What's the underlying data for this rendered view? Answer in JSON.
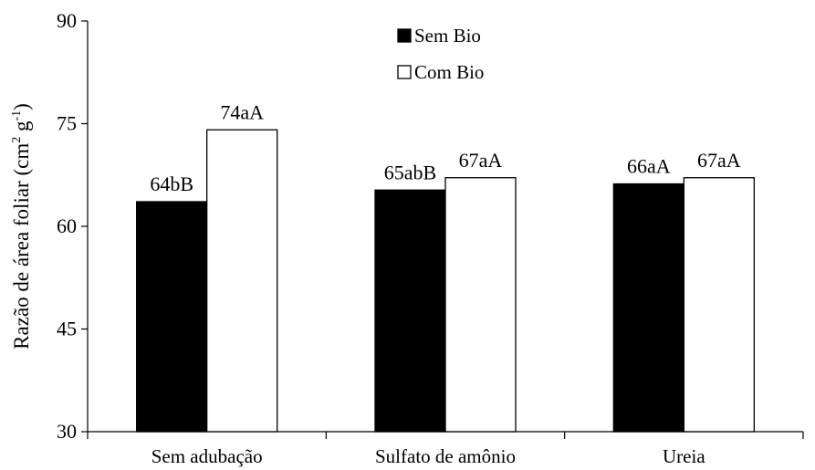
{
  "chart_data": {
    "type": "bar",
    "categories": [
      "Sem adubação",
      "Sulfato de amônio",
      "Ureia"
    ],
    "series": [
      {
        "name": "Sem Bio",
        "values": [
          63.6,
          65.3,
          66.2
        ],
        "labels": [
          "64bB",
          "65abB",
          "66aA"
        ],
        "fill": "#000000"
      },
      {
        "name": "Com Bio",
        "values": [
          74.1,
          67.1,
          67.1
        ],
        "labels": [
          "74aA",
          "67aA",
          "67aA"
        ],
        "fill": "#ffffff"
      }
    ],
    "ylabel": {
      "main": "Razão de área foliar (cm",
      "sup1": "2",
      "mid": " g",
      "sup2": "-1",
      "end": ")"
    },
    "ylim": [
      30,
      90
    ],
    "yticks": [
      "30",
      "45",
      "60",
      "75",
      "90"
    ],
    "legend_position": "top-center",
    "grid": false
  }
}
